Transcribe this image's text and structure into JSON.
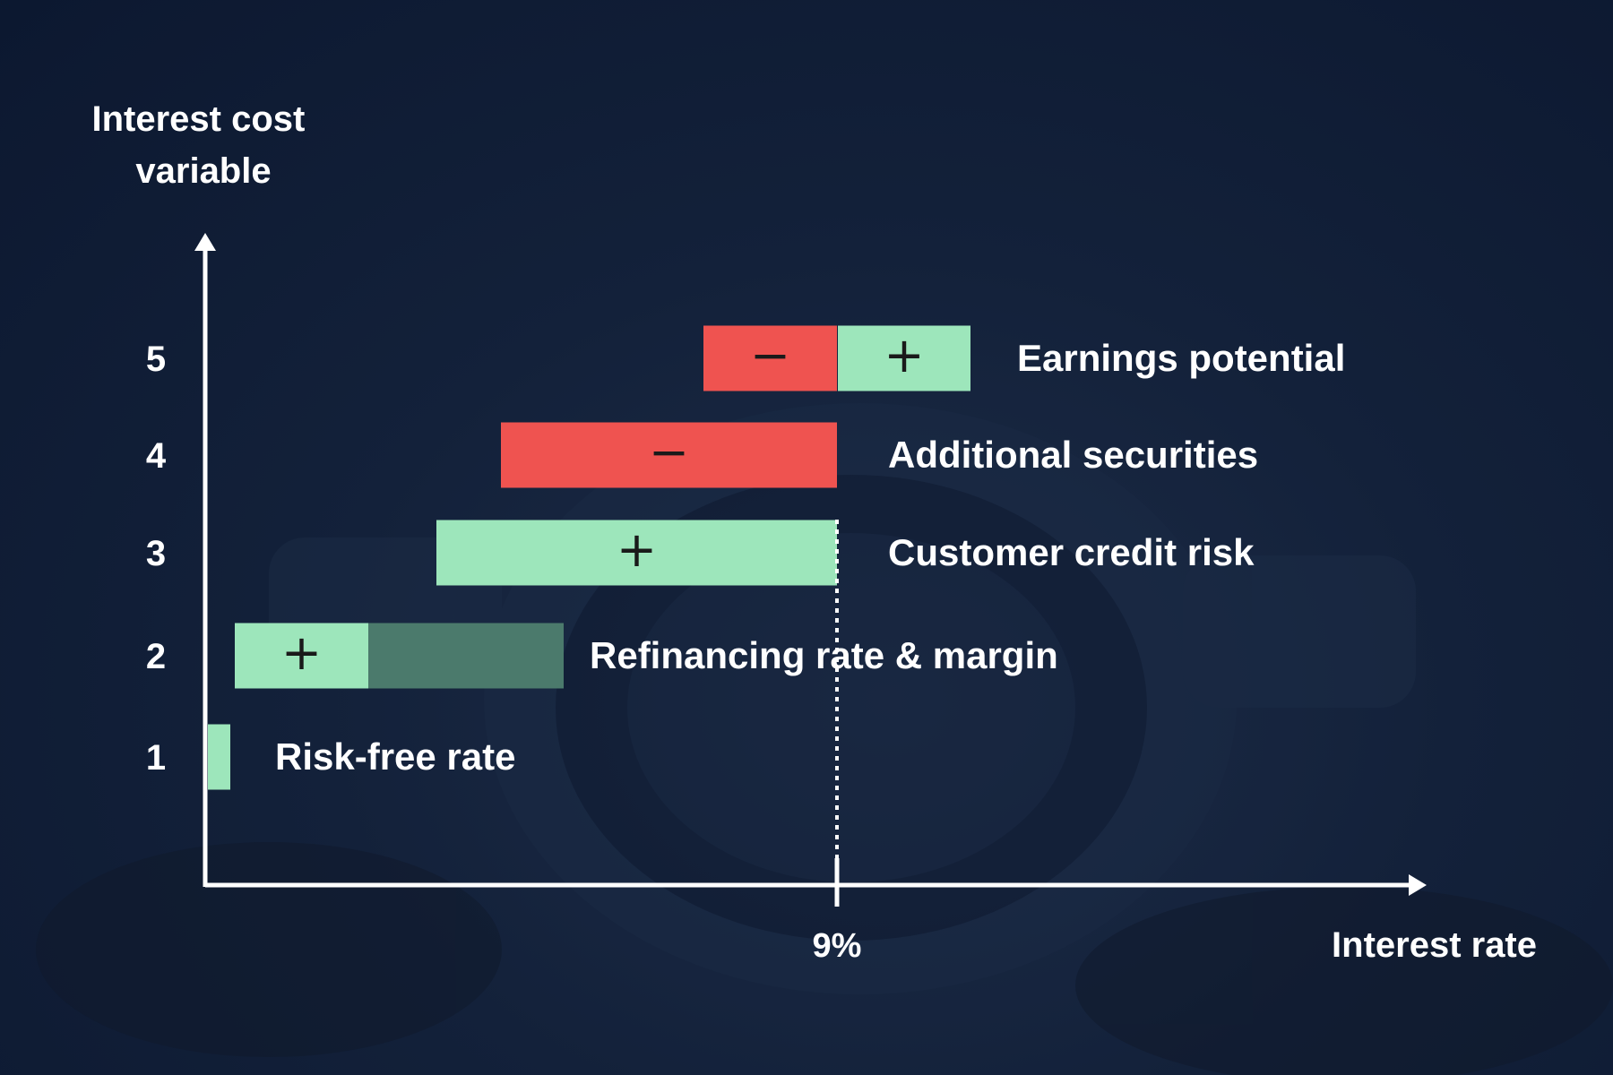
{
  "chart_data": {
    "type": "bar",
    "title": "",
    "ylabel_lines": [
      "Interest cost",
      "variable"
    ],
    "xlabel": "Interest rate",
    "marker_label": "9%",
    "grid": false,
    "rows": [
      {
        "tick": "1",
        "label": "Risk-free rate"
      },
      {
        "tick": "2",
        "label": "Refinancing rate & margin"
      },
      {
        "tick": "3",
        "label": "Customer credit risk"
      },
      {
        "tick": "4",
        "label": "Additional securities"
      },
      {
        "tick": "5",
        "label": "Earnings potential"
      }
    ],
    "segments": [
      {
        "row": 1,
        "kind": "positive",
        "symbol": ""
      },
      {
        "row": 2,
        "kind": "positive",
        "symbol": "+"
      },
      {
        "row": 2,
        "kind": "positive-faded",
        "symbol": ""
      },
      {
        "row": 3,
        "kind": "positive",
        "symbol": "+"
      },
      {
        "row": 4,
        "kind": "negative",
        "symbol": "−"
      },
      {
        "row": 5,
        "kind": "negative",
        "symbol": "−"
      },
      {
        "row": 5,
        "kind": "positive",
        "symbol": "+"
      }
    ],
    "colors": {
      "positive": "#9de6bb",
      "positive_faded": "#4b7a6c",
      "negative": "#ef5350",
      "axis": "#ffffff",
      "text": "#ffffff"
    }
  }
}
